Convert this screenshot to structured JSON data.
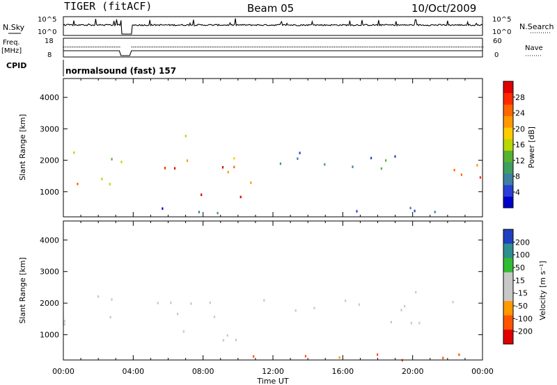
{
  "header": {
    "radar": "TIGER (fitACF)",
    "beam": "Beam 05",
    "date": "10/Oct/2009"
  },
  "summary_panels": {
    "nsky_label": "N.Sky",
    "nsky_ticks": [
      "10^5",
      "10^0"
    ],
    "nsearch_label": "N.Search",
    "nsearch_ticks": [
      "10^5",
      "10^0"
    ],
    "freq_label": "Freq.",
    "freq_unit": "[MHz]",
    "freq_ticks": [
      "18",
      "8"
    ],
    "nave_label": "Nave",
    "nave_ticks": [
      "60",
      "0"
    ],
    "cpid_label": "CPID",
    "cpid_text": "normalsound (fast) 157"
  },
  "colors": {
    "power": [
      "#0000cc",
      "#2a3fd6",
      "#3f7f9f",
      "#3f9f5f",
      "#57b233",
      "#b8d800",
      "#ffcc00",
      "#ff9900",
      "#ff6600",
      "#ff2a00",
      "#e00000"
    ],
    "velocity": [
      "#e00000",
      "#ff5500",
      "#ff9900",
      "#c8c8c8",
      "#c8c8c8",
      "#33bb33",
      "#2e8f8f",
      "#2040c0"
    ]
  },
  "chart_data": [
    {
      "type": "heatmap",
      "panel": "power",
      "ylabel": "Slant Range [km]",
      "ylim": [
        200,
        4600
      ],
      "yticks": [
        1000,
        2000,
        3000,
        4000
      ],
      "xlim": [
        0,
        24
      ],
      "colorbar_label": "Power [dB]",
      "colorbar_ticks": [
        4,
        8,
        12,
        16,
        20,
        24,
        28
      ],
      "colorbar_range": [
        0,
        32
      ],
      "data_gap_hours": [
        3.3,
        3.9
      ],
      "bands": [
        {
          "t0": 0.0,
          "t1": 3.3,
          "r0": 1000,
          "r1": 2450,
          "level": 14
        },
        {
          "t0": 0.0,
          "t1": 3.3,
          "r0": 1200,
          "r1": 1600,
          "level": 22
        },
        {
          "t0": 3.9,
          "t1": 10.6,
          "r0": 1550,
          "r1": 2200,
          "level": 24
        },
        {
          "t0": 5.0,
          "t1": 9.2,
          "r0": 1650,
          "r1": 2000,
          "level": 30
        },
        {
          "t0": 7.0,
          "t1": 10.8,
          "r0": 700,
          "r1": 1250,
          "level": 30
        },
        {
          "t0": 9.0,
          "t1": 11.0,
          "r0": 900,
          "r1": 1500,
          "level": 26
        },
        {
          "t0": 10.5,
          "t1": 18.0,
          "r0": 1850,
          "r1": 2450,
          "level": 8
        },
        {
          "t0": 16.5,
          "t1": 20.5,
          "r0": 1600,
          "r1": 2400,
          "level": 10
        },
        {
          "t0": 20.3,
          "t1": 24.0,
          "r0": 1300,
          "r1": 2250,
          "level": 26
        },
        {
          "t0": 3.9,
          "t1": 24.0,
          "r0": 220,
          "r1": 520,
          "level": 6
        },
        {
          "t0": 6.5,
          "t1": 8.0,
          "r0": 2550,
          "r1": 2850,
          "level": 18
        }
      ]
    },
    {
      "type": "heatmap",
      "panel": "velocity",
      "ylabel": "Slant Range [km]",
      "ylim": [
        200,
        4600
      ],
      "yticks": [
        1000,
        2000,
        3000,
        4000
      ],
      "xlim": [
        0,
        24
      ],
      "xlabel": "Time UT",
      "xticks": [
        "00:00",
        "04:00",
        "08:00",
        "12:00",
        "16:00",
        "20:00",
        "00:00"
      ],
      "colorbar_label": "Velocity [m s⁻¹]",
      "colorbar_ticks": [
        200,
        100,
        50,
        15,
        -15,
        -50,
        -100,
        -200
      ],
      "data_gap_hours": [
        3.3,
        3.9
      ],
      "bands": [
        {
          "t0": 0.0,
          "t1": 3.3,
          "r0": 1000,
          "r1": 2450,
          "velocity": 0
        },
        {
          "t0": 3.9,
          "t1": 10.8,
          "r0": 1500,
          "r1": 2300,
          "velocity": 0
        },
        {
          "t0": 10.5,
          "t1": 18.5,
          "r0": 1800,
          "r1": 2400,
          "velocity": 0
        },
        {
          "t0": 18.0,
          "t1": 24.0,
          "r0": 1300,
          "r1": 2400,
          "velocity": 0
        },
        {
          "t0": 5.5,
          "t1": 10.8,
          "r0": 700,
          "r1": 1300,
          "velocity": 40
        },
        {
          "t0": 6.0,
          "t1": 7.5,
          "r0": 2650,
          "r1": 2850,
          "velocity": -80
        },
        {
          "t0": 10.0,
          "t1": 11.3,
          "r0": 2600,
          "r1": 2850,
          "velocity": 180
        },
        {
          "t0": 3.9,
          "t1": 24.0,
          "r0": 220,
          "r1": 520,
          "velocity": -60
        }
      ]
    }
  ]
}
